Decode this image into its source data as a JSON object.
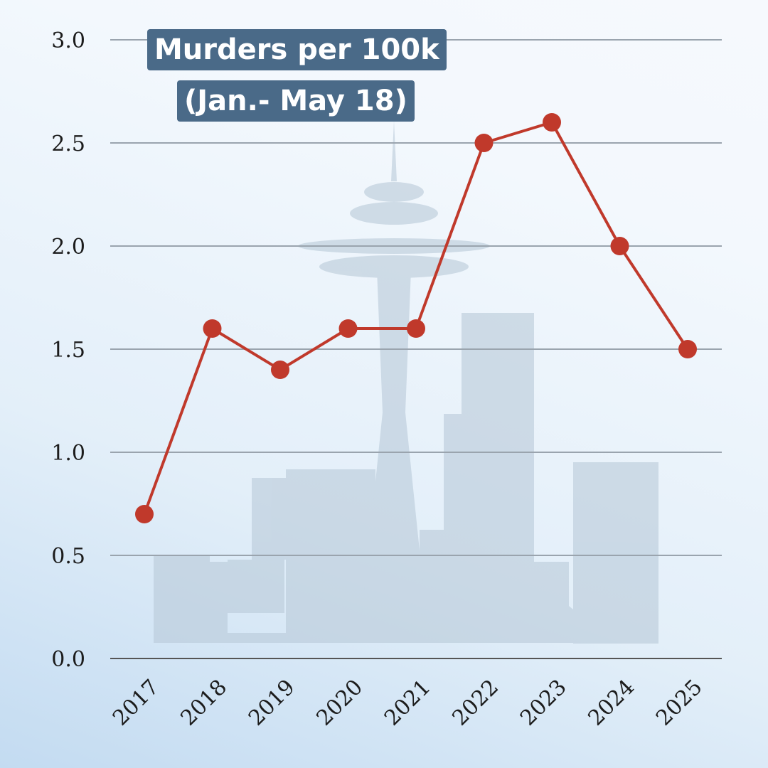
{
  "chart_data": {
    "type": "line",
    "title_line1": "Murders per 100k",
    "title_line2": "(Jan.- May 18)",
    "categories": [
      "2017",
      "2018",
      "2019",
      "2020",
      "2021",
      "2022",
      "2023",
      "2024",
      "2025"
    ],
    "values": [
      0.7,
      1.6,
      1.4,
      1.6,
      1.6,
      2.5,
      2.6,
      2.0,
      1.5
    ],
    "ylim": [
      0,
      3.0
    ],
    "yticks": [
      "0.0",
      "0.5",
      "1.0",
      "1.5",
      "2.0",
      "2.5",
      "3.0"
    ],
    "grid": true,
    "legend": "none",
    "line_color": "#c0392b",
    "grid_color": "#9aa4ae",
    "background_silhouette": "seattle-skyline-space-needle"
  }
}
